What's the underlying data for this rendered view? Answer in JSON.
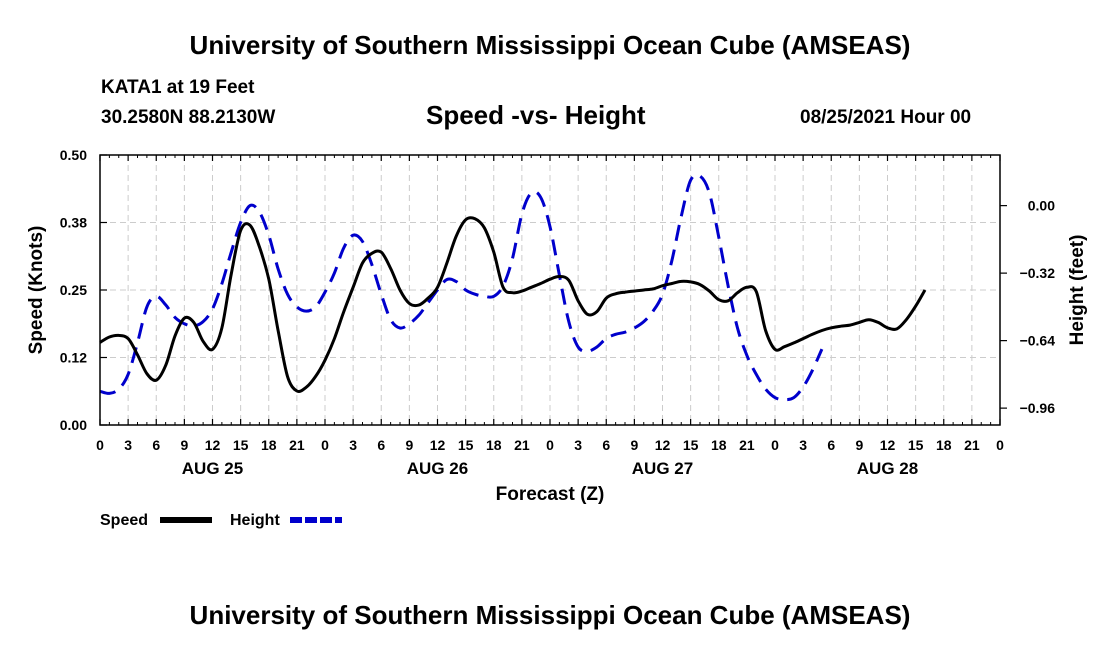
{
  "header": {
    "title": "University of Southern Mississippi Ocean Cube (AMSEAS)",
    "station": "KATA1 at 19 Feet",
    "coords": "30.2580N  88.2130W",
    "subtitle": "Speed -vs- Height",
    "datetime": "08/25/2021 Hour 00"
  },
  "footer": {
    "title": "University of Southern Mississippi Ocean Cube (AMSEAS)"
  },
  "chart_data": {
    "type": "line",
    "title": "Speed -vs- Height",
    "xlabel": "Forecast (Z)",
    "ylabel": "Speed (Knots)",
    "y2label": "Height (feet)",
    "x_unit": "hours since 08/25/2021 00Z",
    "xlim": [
      0,
      96
    ],
    "ylim": [
      0,
      0.5
    ],
    "y2lim": [
      -1.04,
      0.24
    ],
    "x_ticks": [
      0,
      3,
      6,
      9,
      12,
      15,
      18,
      21,
      24,
      27,
      30,
      33,
      36,
      39,
      42,
      45,
      48,
      51,
      54,
      57,
      60,
      63,
      66,
      69,
      72,
      75,
      78,
      81,
      84,
      87,
      90,
      93,
      96
    ],
    "x_tick_labels": [
      "0",
      "3",
      "6",
      "9",
      "12",
      "15",
      "18",
      "21",
      "0",
      "3",
      "6",
      "9",
      "12",
      "15",
      "18",
      "21",
      "0",
      "3",
      "6",
      "9",
      "12",
      "15",
      "18",
      "21",
      "0",
      "3",
      "6",
      "9",
      "12",
      "15",
      "18",
      "21",
      "0"
    ],
    "y_ticks": [
      0,
      0.125,
      0.25,
      0.375,
      0.5
    ],
    "y_tick_labels": [
      "0.00",
      "0.12",
      "0.25",
      "0.38",
      "0.50"
    ],
    "y2_ticks": [
      0,
      -0.32,
      -0.64,
      -0.96
    ],
    "y2_tick_labels": [
      "0.00",
      "−0.32",
      "−0.64",
      "−0.96"
    ],
    "day_labels": [
      {
        "x": 12,
        "label": "AUG 25"
      },
      {
        "x": 36,
        "label": "AUG 26"
      },
      {
        "x": 60,
        "label": "AUG 27"
      },
      {
        "x": 84,
        "label": "AUG 28"
      }
    ],
    "grid": true,
    "series": [
      {
        "name": "Speed",
        "axis": "left",
        "color": "#000000",
        "dash": "solid",
        "points": [
          [
            0,
            0.153
          ],
          [
            1,
            0.163
          ],
          [
            2,
            0.166
          ],
          [
            3,
            0.16
          ],
          [
            4,
            0.13
          ],
          [
            5,
            0.095
          ],
          [
            6,
            0.083
          ],
          [
            7,
            0.11
          ],
          [
            8,
            0.165
          ],
          [
            9,
            0.198
          ],
          [
            10,
            0.19
          ],
          [
            11,
            0.155
          ],
          [
            12,
            0.14
          ],
          [
            13,
            0.18
          ],
          [
            14,
            0.28
          ],
          [
            15,
            0.36
          ],
          [
            16,
            0.37
          ],
          [
            17,
            0.33
          ],
          [
            18,
            0.27
          ],
          [
            19,
            0.175
          ],
          [
            20,
            0.09
          ],
          [
            21,
            0.063
          ],
          [
            22,
            0.07
          ],
          [
            23,
            0.09
          ],
          [
            24,
            0.12
          ],
          [
            25,
            0.16
          ],
          [
            26,
            0.21
          ],
          [
            27,
            0.255
          ],
          [
            28,
            0.3
          ],
          [
            29,
            0.318
          ],
          [
            30,
            0.32
          ],
          [
            31,
            0.29
          ],
          [
            32,
            0.25
          ],
          [
            33,
            0.225
          ],
          [
            34,
            0.222
          ],
          [
            35,
            0.235
          ],
          [
            36,
            0.255
          ],
          [
            37,
            0.3
          ],
          [
            38,
            0.35
          ],
          [
            39,
            0.38
          ],
          [
            40,
            0.382
          ],
          [
            41,
            0.365
          ],
          [
            42,
            0.32
          ],
          [
            43,
            0.255
          ],
          [
            44,
            0.245
          ],
          [
            45,
            0.248
          ],
          [
            46,
            0.255
          ],
          [
            47,
            0.262
          ],
          [
            48,
            0.27
          ],
          [
            49,
            0.275
          ],
          [
            50,
            0.268
          ],
          [
            51,
            0.23
          ],
          [
            52,
            0.205
          ],
          [
            53,
            0.21
          ],
          [
            54,
            0.235
          ],
          [
            55,
            0.243
          ],
          [
            56,
            0.246
          ],
          [
            57,
            0.248
          ],
          [
            58,
            0.25
          ],
          [
            59,
            0.252
          ],
          [
            60,
            0.258
          ],
          [
            61,
            0.262
          ],
          [
            62,
            0.266
          ],
          [
            63,
            0.265
          ],
          [
            64,
            0.26
          ],
          [
            65,
            0.248
          ],
          [
            66,
            0.232
          ],
          [
            67,
            0.23
          ],
          [
            68,
            0.245
          ],
          [
            69,
            0.255
          ],
          [
            70,
            0.247
          ],
          [
            71,
            0.175
          ],
          [
            72,
            0.14
          ],
          [
            73,
            0.145
          ],
          [
            74,
            0.152
          ],
          [
            75,
            0.16
          ],
          [
            76,
            0.168
          ],
          [
            77,
            0.175
          ],
          [
            78,
            0.18
          ],
          [
            79,
            0.183
          ],
          [
            80,
            0.185
          ],
          [
            81,
            0.19
          ],
          [
            82,
            0.195
          ],
          [
            83,
            0.19
          ],
          [
            84,
            0.18
          ],
          [
            85,
            0.178
          ],
          [
            86,
            0.195
          ],
          [
            87,
            0.22
          ],
          [
            88,
            0.25
          ]
        ]
      },
      {
        "name": "Height",
        "axis": "right",
        "color": "#0000cc",
        "dash": "dashed",
        "points": [
          [
            0,
            -0.88
          ],
          [
            1,
            -0.89
          ],
          [
            2,
            -0.87
          ],
          [
            3,
            -0.8
          ],
          [
            4,
            -0.65
          ],
          [
            5,
            -0.48
          ],
          [
            6,
            -0.43
          ],
          [
            7,
            -0.47
          ],
          [
            8,
            -0.53
          ],
          [
            9,
            -0.56
          ],
          [
            10,
            -0.57
          ],
          [
            11,
            -0.55
          ],
          [
            12,
            -0.49
          ],
          [
            13,
            -0.37
          ],
          [
            14,
            -0.22
          ],
          [
            15,
            -0.08
          ],
          [
            16,
            0.0
          ],
          [
            17,
            -0.03
          ],
          [
            18,
            -0.14
          ],
          [
            19,
            -0.3
          ],
          [
            20,
            -0.42
          ],
          [
            21,
            -0.48
          ],
          [
            22,
            -0.5
          ],
          [
            23,
            -0.48
          ],
          [
            24,
            -0.41
          ],
          [
            25,
            -0.32
          ],
          [
            26,
            -0.2
          ],
          [
            27,
            -0.14
          ],
          [
            28,
            -0.17
          ],
          [
            29,
            -0.28
          ],
          [
            30,
            -0.42
          ],
          [
            31,
            -0.54
          ],
          [
            32,
            -0.58
          ],
          [
            33,
            -0.56
          ],
          [
            34,
            -0.52
          ],
          [
            35,
            -0.46
          ],
          [
            36,
            -0.4
          ],
          [
            37,
            -0.35
          ],
          [
            38,
            -0.36
          ],
          [
            39,
            -0.4
          ],
          [
            40,
            -0.42
          ],
          [
            41,
            -0.43
          ],
          [
            42,
            -0.43
          ],
          [
            43,
            -0.38
          ],
          [
            44,
            -0.25
          ],
          [
            45,
            -0.04
          ],
          [
            46,
            0.06
          ],
          [
            47,
            0.04
          ],
          [
            48,
            -0.1
          ],
          [
            49,
            -0.33
          ],
          [
            50,
            -0.55
          ],
          [
            51,
            -0.67
          ],
          [
            52,
            -0.69
          ],
          [
            53,
            -0.67
          ],
          [
            54,
            -0.63
          ],
          [
            55,
            -0.61
          ],
          [
            56,
            -0.6
          ],
          [
            57,
            -0.58
          ],
          [
            58,
            -0.55
          ],
          [
            59,
            -0.5
          ],
          [
            60,
            -0.42
          ],
          [
            61,
            -0.26
          ],
          [
            62,
            -0.05
          ],
          [
            63,
            0.12
          ],
          [
            64,
            0.14
          ],
          [
            65,
            0.06
          ],
          [
            66,
            -0.15
          ],
          [
            67,
            -0.38
          ],
          [
            68,
            -0.58
          ],
          [
            69,
            -0.71
          ],
          [
            70,
            -0.8
          ],
          [
            71,
            -0.87
          ],
          [
            72,
            -0.91
          ],
          [
            73,
            -0.92
          ],
          [
            74,
            -0.91
          ],
          [
            75,
            -0.86
          ],
          [
            76,
            -0.78
          ],
          [
            77,
            -0.68
          ]
        ]
      }
    ]
  },
  "legend": {
    "items": [
      {
        "label": "Speed",
        "color": "#000000",
        "dash": "solid"
      },
      {
        "label": "Height",
        "color": "#0000cc",
        "dash": "dashed"
      }
    ]
  }
}
